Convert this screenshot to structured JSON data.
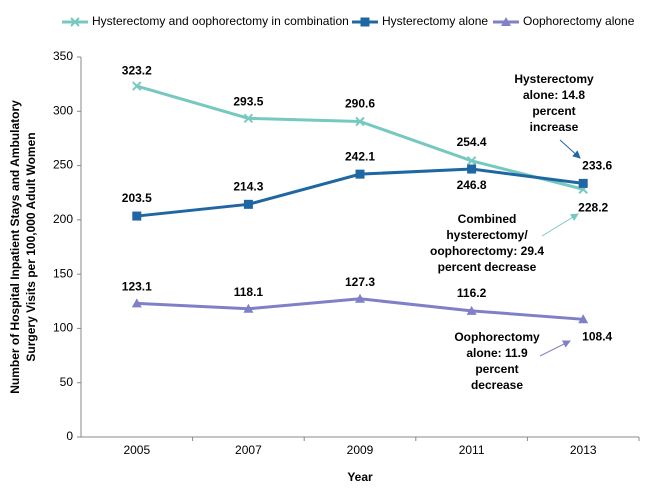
{
  "chart_data": {
    "type": "line",
    "x_label": "Year",
    "y_label": [
      "Number of Hospital Inpatient Stays and Ambulatory",
      "Surgery Visits per 100,000  Adult Women"
    ],
    "categories": [
      "2005",
      "2007",
      "2009",
      "2011",
      "2013"
    ],
    "series": [
      {
        "name": "Hysterectomy and oophorectomy in combination",
        "color": "#77c9c0",
        "marker": "x",
        "values": [
          323.2,
          293.5,
          290.6,
          254.4,
          228.2
        ]
      },
      {
        "name": "Hysterectomy alone",
        "color": "#1f67a3",
        "marker": "square",
        "values": [
          203.5,
          214.3,
          242.1,
          246.8,
          233.6
        ]
      },
      {
        "name": "Oophorectomy alone",
        "color": "#8080c8",
        "marker": "triangle",
        "values": [
          123.1,
          118.1,
          127.3,
          116.2,
          108.4
        ]
      }
    ],
    "ylim": [
      0,
      350
    ],
    "yticks": [
      0,
      50,
      100,
      150,
      200,
      250,
      300,
      350
    ],
    "grid": false,
    "legend": "top",
    "annotations": [
      {
        "lines": [
          "Hysterectomy",
          "alone: 14.8",
          "percent",
          "increase"
        ]
      },
      {
        "lines": [
          "Combined",
          "hysterectomy/",
          "oophorectomy:  29.4",
          "percent decrease"
        ]
      },
      {
        "lines": [
          "Oophorectomy",
          "alone: 11.9",
          "percent",
          "decrease"
        ]
      }
    ]
  }
}
